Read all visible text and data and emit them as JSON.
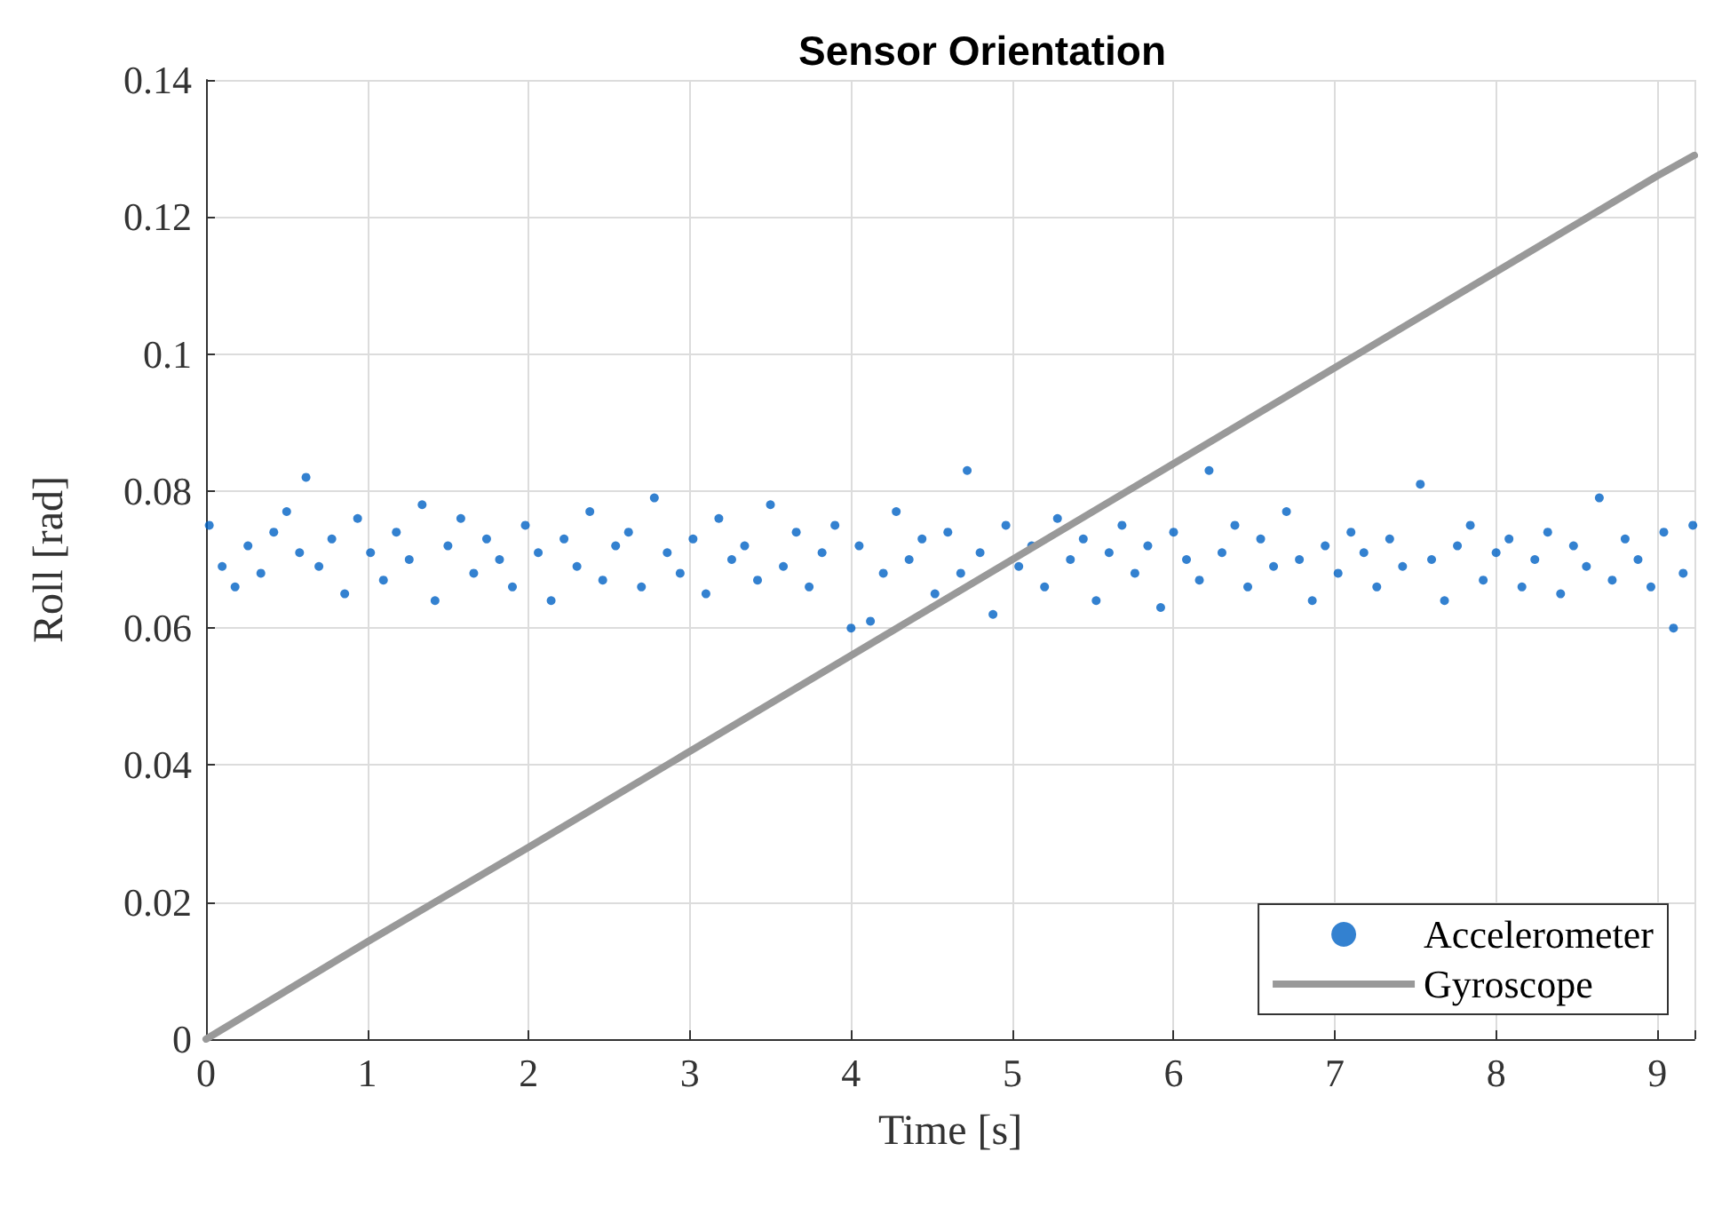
{
  "chart_data": {
    "type": "scatter",
    "title": "Sensor Orientation",
    "xlabel": "Time [s]",
    "ylabel": "Roll [rad]",
    "xlim": [
      0,
      9.23
    ],
    "ylim": [
      0,
      0.14
    ],
    "xticks": [
      0,
      1,
      2,
      3,
      4,
      5,
      6,
      7,
      8,
      9
    ],
    "yticks": [
      0,
      0.02,
      0.04,
      0.06,
      0.08,
      0.1,
      0.12,
      0.14
    ],
    "grid": true,
    "legend": "bottom right",
    "series": [
      {
        "name": "Accelerometer",
        "color": "#0062c4",
        "marker": "circle",
        "x": [
          0.02,
          0.1,
          0.18,
          0.26,
          0.34,
          0.42,
          0.5,
          0.58,
          0.62,
          0.7,
          0.78,
          0.86,
          0.94,
          1.02,
          1.1,
          1.18,
          1.26,
          1.34,
          1.42,
          1.5,
          1.58,
          1.66,
          1.74,
          1.82,
          1.9,
          1.98,
          2.06,
          2.14,
          2.22,
          2.3,
          2.38,
          2.46,
          2.54,
          2.62,
          2.7,
          2.78,
          2.86,
          2.94,
          3.02,
          3.1,
          3.18,
          3.26,
          3.34,
          3.42,
          3.5,
          3.58,
          3.66,
          3.74,
          3.82,
          3.9,
          4.0,
          4.05,
          4.12,
          4.2,
          4.28,
          4.36,
          4.44,
          4.52,
          4.6,
          4.68,
          4.72,
          4.8,
          4.88,
          4.96,
          5.04,
          5.12,
          5.2,
          5.28,
          5.36,
          5.44,
          5.52,
          5.6,
          5.68,
          5.76,
          5.84,
          5.92,
          6.0,
          6.08,
          6.16,
          6.22,
          6.3,
          6.38,
          6.46,
          6.54,
          6.62,
          6.7,
          6.78,
          6.86,
          6.94,
          7.02,
          7.1,
          7.18,
          7.26,
          7.34,
          7.42,
          7.53,
          7.6,
          7.68,
          7.76,
          7.84,
          7.92,
          8.0,
          8.08,
          8.16,
          8.24,
          8.32,
          8.4,
          8.48,
          8.56,
          8.64,
          8.72,
          8.8,
          8.88,
          8.96,
          9.04,
          9.1,
          9.16,
          9.22
        ],
        "values": [
          0.075,
          0.069,
          0.066,
          0.072,
          0.068,
          0.074,
          0.077,
          0.071,
          0.082,
          0.069,
          0.073,
          0.065,
          0.076,
          0.071,
          0.067,
          0.074,
          0.07,
          0.078,
          0.064,
          0.072,
          0.076,
          0.068,
          0.073,
          0.07,
          0.066,
          0.075,
          0.071,
          0.064,
          0.073,
          0.069,
          0.077,
          0.067,
          0.072,
          0.074,
          0.066,
          0.079,
          0.071,
          0.068,
          0.073,
          0.065,
          0.076,
          0.07,
          0.072,
          0.067,
          0.078,
          0.069,
          0.074,
          0.066,
          0.071,
          0.075,
          0.06,
          0.072,
          0.061,
          0.068,
          0.077,
          0.07,
          0.073,
          0.065,
          0.074,
          0.068,
          0.083,
          0.071,
          0.062,
          0.075,
          0.069,
          0.072,
          0.066,
          0.076,
          0.07,
          0.073,
          0.064,
          0.071,
          0.075,
          0.068,
          0.072,
          0.063,
          0.074,
          0.07,
          0.067,
          0.083,
          0.071,
          0.075,
          0.066,
          0.073,
          0.069,
          0.077,
          0.07,
          0.064,
          0.072,
          0.068,
          0.074,
          0.071,
          0.066,
          0.073,
          0.069,
          0.081,
          0.07,
          0.064,
          0.072,
          0.075,
          0.067,
          0.071,
          0.073,
          0.066,
          0.07,
          0.074,
          0.065,
          0.072,
          0.069,
          0.079,
          0.067,
          0.073,
          0.07,
          0.066,
          0.074,
          0.06,
          0.068,
          0.075
        ]
      },
      {
        "name": "Gyroscope",
        "type": "line",
        "color": "#999999",
        "marker": "none",
        "line_style": "solid",
        "x": [
          0,
          1,
          2,
          3,
          4,
          5,
          6,
          7,
          8,
          9,
          9.23
        ],
        "values": [
          0,
          0.0142,
          0.028,
          0.042,
          0.056,
          0.07,
          0.084,
          0.098,
          0.112,
          0.126,
          0.129
        ]
      }
    ]
  }
}
